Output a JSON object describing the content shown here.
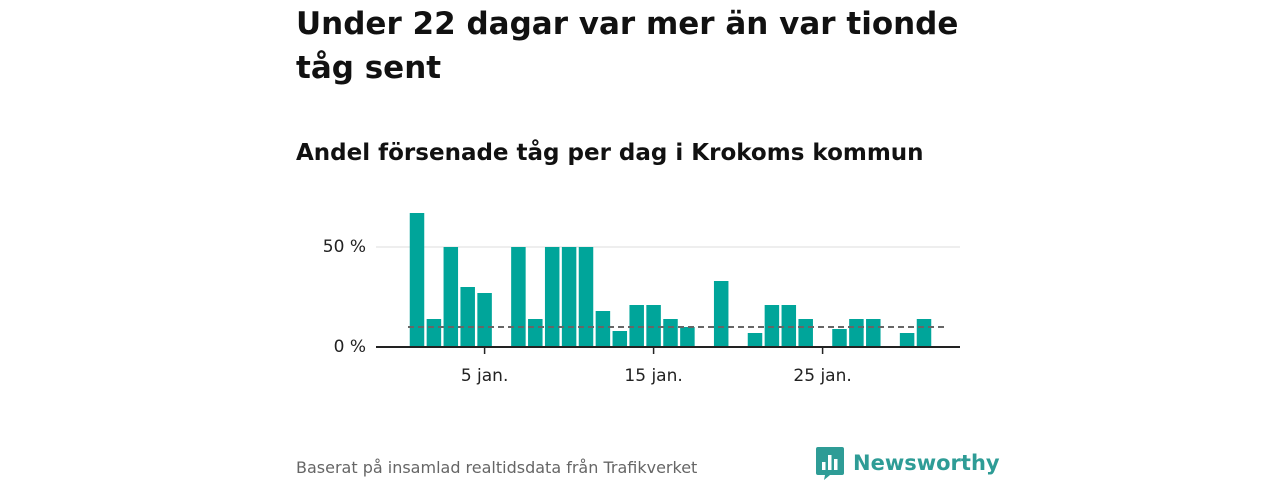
{
  "title": "Under 22 dagar var mer än var tionde tåg sent",
  "subtitle": "Andel försenade tåg per dag i Krokoms kommun",
  "footer": {
    "source": "Baserat på insamlad realtidsdata från Trafikverket",
    "brand": "Newsworthy"
  },
  "colors": {
    "bar": "#00a59a",
    "reference_line": "#666666",
    "brand": "#2e9c96"
  },
  "chart_data": {
    "type": "bar",
    "x": [
      1,
      2,
      3,
      4,
      5,
      6,
      7,
      8,
      9,
      10,
      11,
      12,
      13,
      14,
      15,
      16,
      17,
      18,
      19,
      20,
      21,
      22,
      23,
      24,
      25,
      26,
      27,
      28,
      29,
      30,
      31
    ],
    "values": [
      67,
      14,
      50,
      30,
      27,
      0,
      50,
      14,
      50,
      50,
      50,
      18,
      8,
      21,
      21,
      14,
      10,
      0,
      33,
      0,
      7,
      21,
      21,
      14,
      0,
      9,
      14,
      14,
      0,
      7,
      14
    ],
    "reference_line": {
      "value": 10,
      "style": "dashed"
    },
    "xticks": [
      5,
      15,
      25
    ],
    "xtick_labels": [
      "5 jan.",
      "15 jan.",
      "25 jan."
    ],
    "yticks": [
      0,
      50
    ],
    "ytick_labels": [
      "0 %",
      "50 %"
    ],
    "ylim": [
      0,
      70
    ],
    "grid": "horizontal",
    "xlabel": "",
    "ylabel": ""
  }
}
